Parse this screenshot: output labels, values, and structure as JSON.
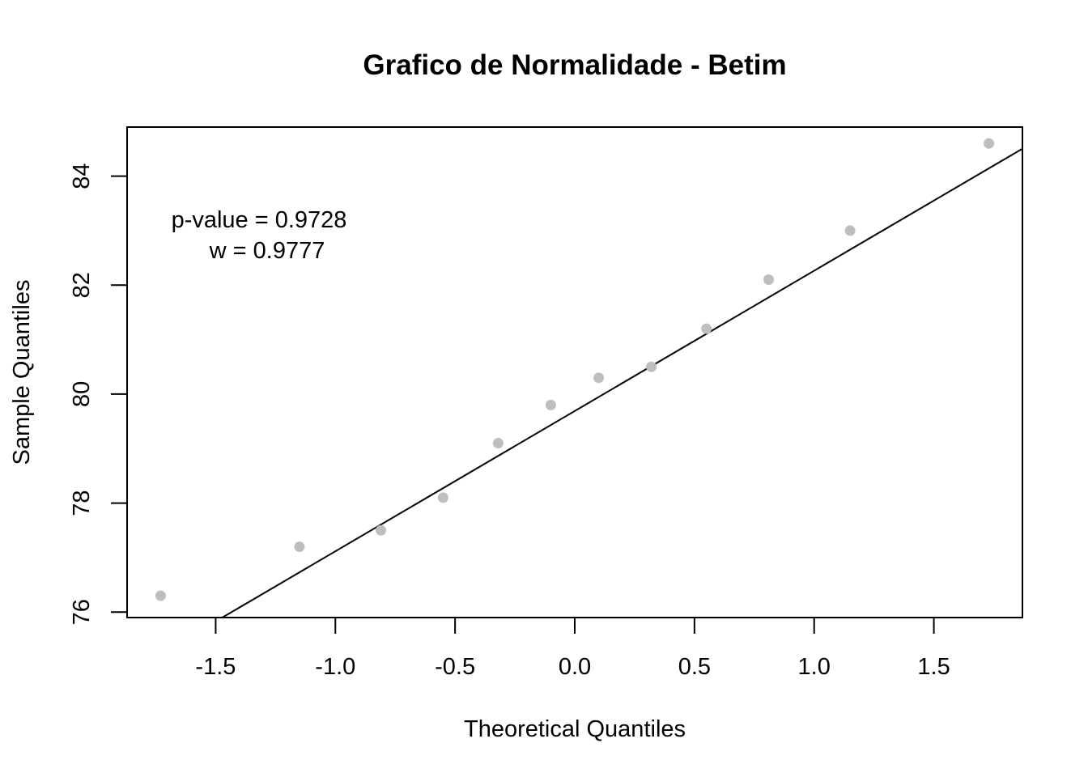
{
  "chart_data": {
    "type": "scatter",
    "title": "Grafico de Normalidade - Betim",
    "xlabel": "Theoretical Quantiles",
    "ylabel": "Sample Quantiles",
    "xlim": [
      -1.87,
      1.87
    ],
    "ylim": [
      75.9,
      84.9
    ],
    "x_ticks": [
      -1.5,
      -1.0,
      -0.5,
      0.0,
      0.5,
      1.0,
      1.5
    ],
    "x_tick_labels": [
      "-1.5",
      "-1.0",
      "-0.5",
      "0.0",
      "0.5",
      "1.0",
      "1.5"
    ],
    "y_ticks": [
      76,
      78,
      80,
      82,
      84
    ],
    "y_tick_labels": [
      "76",
      "78",
      "80",
      "82",
      "84"
    ],
    "points": [
      {
        "x": -1.73,
        "y": 76.3
      },
      {
        "x": -1.15,
        "y": 77.2
      },
      {
        "x": -0.81,
        "y": 77.5
      },
      {
        "x": -0.55,
        "y": 78.1
      },
      {
        "x": -0.32,
        "y": 79.1
      },
      {
        "x": -0.1,
        "y": 79.8
      },
      {
        "x": 0.1,
        "y": 80.3
      },
      {
        "x": 0.32,
        "y": 80.5
      },
      {
        "x": 0.55,
        "y": 81.2
      },
      {
        "x": 0.81,
        "y": 82.1
      },
      {
        "x": 1.15,
        "y": 83.0
      },
      {
        "x": 1.73,
        "y": 84.6
      }
    ],
    "reference_line": {
      "intercept": 79.69,
      "slope": 2.574
    },
    "point_color": "#bebebe",
    "line_color": "#000000",
    "grid": false,
    "annotations": [
      "p-value = 0.9728",
      "w = 0.9777"
    ]
  }
}
